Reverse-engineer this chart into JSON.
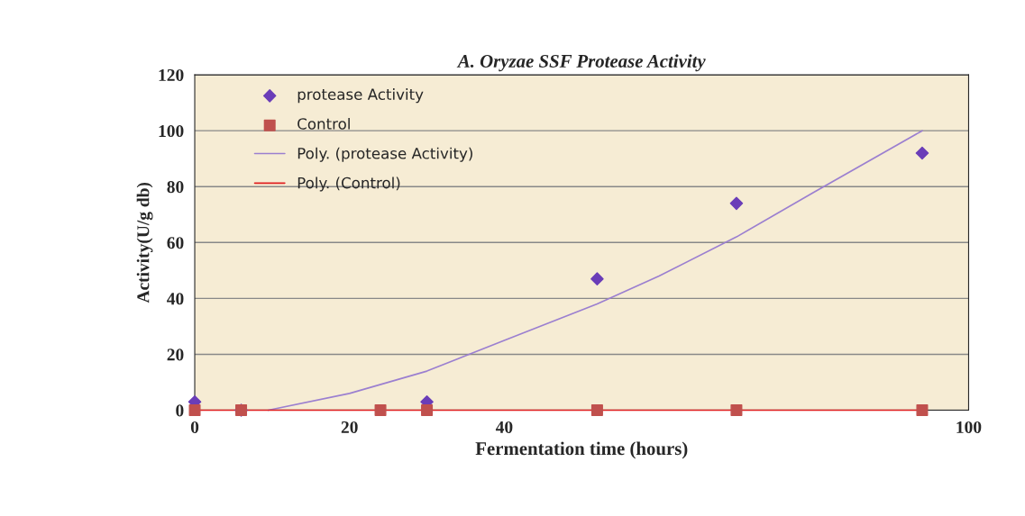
{
  "chart_data": {
    "type": "scatter",
    "title": "A. Oryzae SSF Protease Activity",
    "xlabel": "Fermentation time (hours)",
    "ylabel": "Activity(U/g db)",
    "xlim": [
      0,
      100
    ],
    "xticks": [
      0,
      20,
      40,
      100
    ],
    "ylim": [
      0,
      120
    ],
    "yticks": [
      0,
      20,
      40,
      60,
      80,
      100,
      120
    ],
    "grid": "y",
    "legend": "top left",
    "series": [
      {
        "name": "protease Activity",
        "marker": "diamond",
        "color": "#6a3db8",
        "x": [
          0,
          6,
          30,
          52,
          70,
          94
        ],
        "values": [
          3,
          0,
          3,
          47,
          74,
          92
        ]
      },
      {
        "name": "Control",
        "marker": "square",
        "color": "#c0504d",
        "x": [
          0,
          6,
          24,
          30,
          52,
          70,
          94
        ],
        "values": [
          0,
          0,
          0,
          0,
          0,
          0,
          0
        ]
      },
      {
        "name": "Poly. (protease Activity)",
        "type": "line",
        "marker": "none",
        "color": "#9b7fd0",
        "x": [
          9.5,
          20,
          30,
          40,
          52,
          60,
          70,
          80,
          94
        ],
        "values": [
          0,
          6,
          14,
          25,
          38,
          48,
          62,
          78,
          100
        ]
      },
      {
        "name": "Poly. (Control)",
        "type": "line",
        "marker": "none",
        "color": "#e02020",
        "x": [
          0,
          94
        ],
        "values": [
          0,
          0
        ]
      }
    ]
  }
}
